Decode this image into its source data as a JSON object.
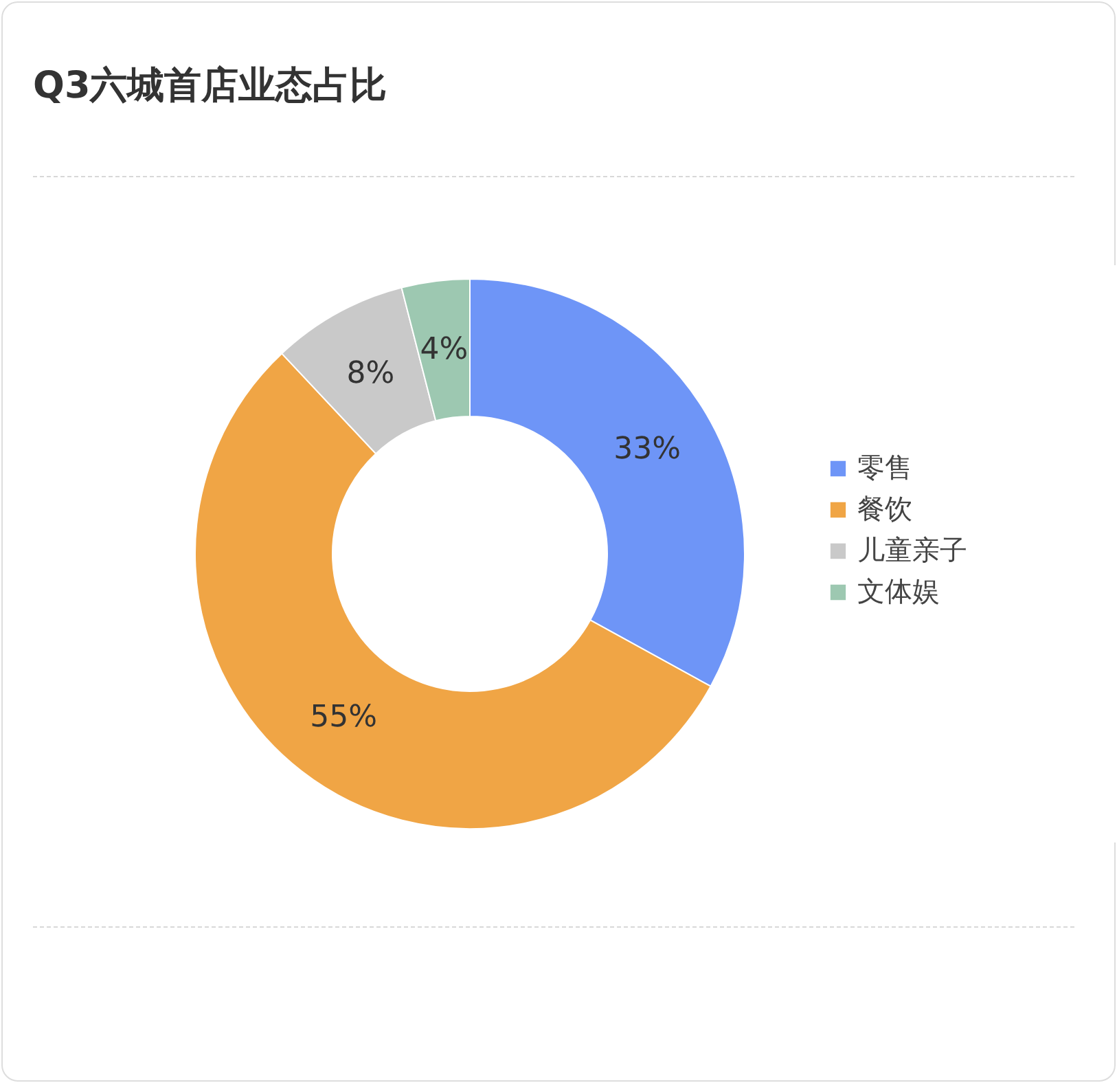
{
  "chart_data": {
    "type": "donut",
    "title": "Q3六城首店业态占比",
    "categories": [
      "零售",
      "餐饮",
      "儿童亲子",
      "文体娱"
    ],
    "values": [
      33,
      55,
      8,
      4
    ],
    "value_labels": [
      "33%",
      "55%",
      "8%",
      "4%"
    ],
    "colors": [
      "#6e95f7",
      "#f0a545",
      "#c9c9c9",
      "#9dc8b1"
    ],
    "legend": "right"
  }
}
